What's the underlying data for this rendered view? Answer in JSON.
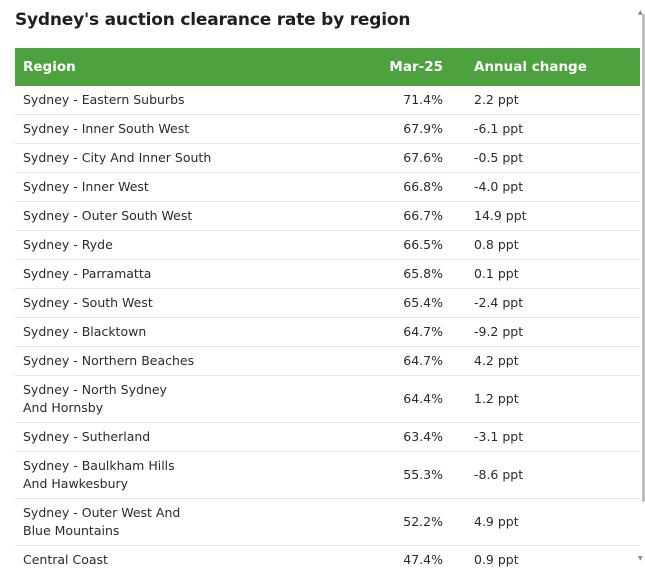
{
  "chart_data": {
    "type": "table",
    "title": "Sydney's auction clearance rate by region",
    "columns": [
      "Region",
      "Mar-25",
      "Annual change"
    ],
    "rows": [
      {
        "region": "Sydney - Eastern Suburbs",
        "mar25": "71.4%",
        "change": "2.2 ppt"
      },
      {
        "region": "Sydney - Inner South West",
        "mar25": "67.9%",
        "change": "-6.1 ppt"
      },
      {
        "region": "Sydney - City And Inner South",
        "mar25": "67.6%",
        "change": "-0.5 ppt"
      },
      {
        "region": "Sydney - Inner West",
        "mar25": "66.8%",
        "change": "-4.0 ppt"
      },
      {
        "region": "Sydney - Outer South West",
        "mar25": "66.7%",
        "change": "14.9 ppt"
      },
      {
        "region": "Sydney - Ryde",
        "mar25": "66.5%",
        "change": "0.8 ppt"
      },
      {
        "region": "Sydney - Parramatta",
        "mar25": "65.8%",
        "change": "0.1 ppt"
      },
      {
        "region": "Sydney - South West",
        "mar25": "65.4%",
        "change": "-2.4 ppt"
      },
      {
        "region": "Sydney - Blacktown",
        "mar25": "64.7%",
        "change": "-9.2 ppt"
      },
      {
        "region": "Sydney - Northern Beaches",
        "mar25": "64.7%",
        "change": "4.2 ppt"
      },
      {
        "region": "Sydney - North Sydney And Hornsby",
        "mar25": "64.4%",
        "change": "1.2 ppt"
      },
      {
        "region": "Sydney - Sutherland",
        "mar25": "63.4%",
        "change": "-3.1 ppt"
      },
      {
        "region": "Sydney - Baulkham Hills And Hawkesbury",
        "mar25": "55.3%",
        "change": "-8.6 ppt"
      },
      {
        "region": "Sydney - Outer West And Blue Mountains",
        "mar25": "52.2%",
        "change": "4.9 ppt"
      },
      {
        "region": "Central Coast",
        "mar25": "47.4%",
        "change": "0.9 ppt"
      }
    ]
  },
  "colors": {
    "header_background": "#4ea13f",
    "header_text": "#ffffff",
    "row_divider": "#e4e4e4"
  },
  "icons": {
    "scroll_up": "triangle-up-icon",
    "scroll_down": "triangle-down-icon"
  }
}
